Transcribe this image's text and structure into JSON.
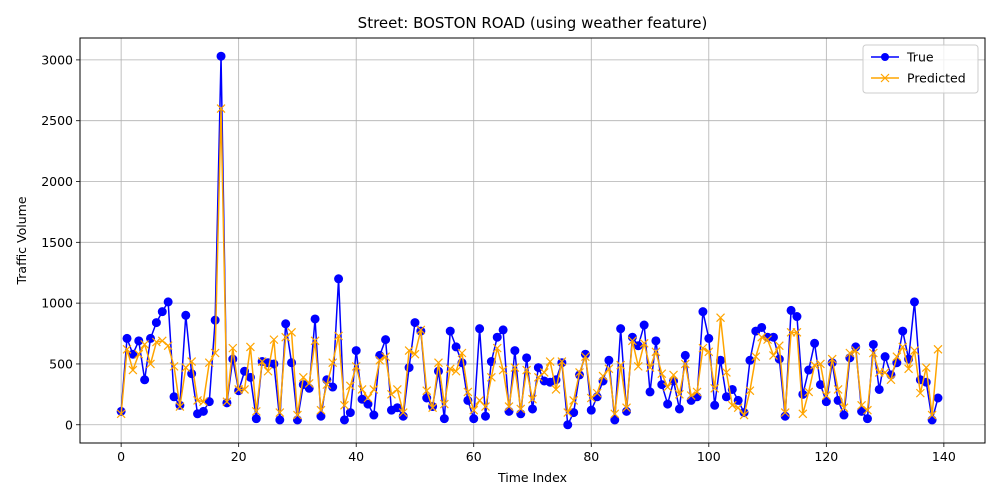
{
  "chart_data": {
    "type": "line",
    "title": "Street: BOSTON ROAD (using weather feature)",
    "xlabel": "Time Index",
    "ylabel": "Traffic Volume",
    "xlim": [
      -7,
      147
    ],
    "ylim": [
      -150,
      3180
    ],
    "xticks": [
      0,
      20,
      40,
      60,
      80,
      100,
      120,
      140
    ],
    "yticks": [
      0,
      500,
      1000,
      1500,
      2000,
      2500,
      3000
    ],
    "grid": true,
    "legend_position": "top-right",
    "series": [
      {
        "name": "True",
        "color": "#0000ff",
        "marker": "circle",
        "values": [
          110,
          710,
          580,
          690,
          370,
          710,
          840,
          930,
          1010,
          230,
          160,
          900,
          420,
          90,
          110,
          190,
          860,
          3030,
          180,
          540,
          280,
          440,
          390,
          50,
          520,
          510,
          500,
          40,
          830,
          510,
          40,
          330,
          300,
          870,
          70,
          370,
          310,
          1200,
          40,
          100,
          610,
          210,
          170,
          80,
          570,
          700,
          120,
          140,
          70,
          470,
          840,
          770,
          220,
          150,
          440,
          50,
          770,
          640,
          510,
          200,
          50,
          790,
          70,
          520,
          720,
          780,
          110,
          610,
          90,
          550,
          130,
          470,
          360,
          350,
          370,
          510,
          0,
          100,
          410,
          580,
          120,
          230,
          360,
          530,
          40,
          790,
          110,
          720,
          650,
          820,
          270,
          690,
          330,
          170,
          360,
          130,
          570,
          200,
          230,
          930,
          710,
          160,
          530,
          230,
          290,
          200,
          100,
          530,
          770,
          800,
          720,
          720,
          540,
          70,
          940,
          890,
          250,
          450,
          670,
          330,
          190,
          510,
          200,
          80,
          550,
          640,
          110,
          50,
          660,
          290,
          560,
          410,
          510,
          770,
          540,
          1010,
          370,
          350,
          40,
          220
        ]
      },
      {
        "name": "Predicted",
        "color": "#ffa500",
        "marker": "x",
        "values": [
          90,
          620,
          450,
          580,
          660,
          500,
          680,
          690,
          650,
          480,
          150,
          470,
          520,
          200,
          190,
          510,
          590,
          2600,
          190,
          630,
          290,
          290,
          640,
          110,
          520,
          440,
          700,
          100,
          720,
          760,
          80,
          390,
          340,
          690,
          120,
          330,
          510,
          730,
          160,
          320,
          480,
          290,
          220,
          290,
          530,
          560,
          250,
          290,
          100,
          610,
          580,
          780,
          280,
          140,
          510,
          170,
          460,
          440,
          590,
          270,
          120,
          200,
          150,
          390,
          630,
          450,
          150,
          470,
          130,
          450,
          210,
          390,
          430,
          520,
          290,
          520,
          100,
          200,
          430,
          560,
          220,
          260,
          400,
          460,
          90,
          490,
          140,
          690,
          480,
          670,
          470,
          600,
          420,
          310,
          410,
          250,
          500,
          240,
          270,
          630,
          600,
          300,
          880,
          430,
          160,
          140,
          80,
          280,
          560,
          720,
          700,
          570,
          650,
          100,
          760,
          760,
          90,
          270,
          490,
          500,
          240,
          540,
          290,
          140,
          590,
          610,
          160,
          120,
          590,
          430,
          430,
          370,
          560,
          640,
          460,
          610,
          260,
          470,
          80,
          620
        ]
      }
    ]
  }
}
